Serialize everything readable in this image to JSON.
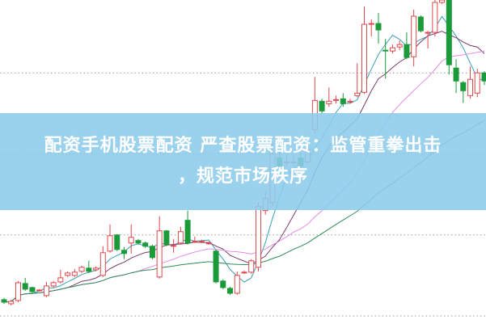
{
  "banner": {
    "line1": "配资手机股票配资 严查股票配资：监管重拳出击",
    "line2": "，规范市场秩序",
    "background": "#8cccec",
    "text_color": "#ffffff"
  },
  "chart_data": {
    "type": "candlestick",
    "title": "",
    "xlabel": "",
    "ylabel": "",
    "ylim": [
      0,
      400
    ],
    "grid": true,
    "grid_levels": [
      10,
      110,
      210,
      310
    ],
    "up_color": "#e0474c",
    "down_color": "#1b9a3a",
    "moving_averages": [
      {
        "period": 5,
        "color": "#3aa0b8"
      },
      {
        "period": 10,
        "color": "#7a3b6e"
      },
      {
        "period": 20,
        "color": "#e58be8"
      },
      {
        "period": 40,
        "color": "#2e8b57"
      }
    ],
    "candles": [
      [
        30,
        27,
        32,
        25
      ],
      [
        25,
        28,
        30,
        23
      ],
      [
        29,
        51,
        53,
        27
      ],
      [
        50,
        43,
        57,
        41
      ],
      [
        45,
        40,
        46,
        38
      ],
      [
        42,
        42,
        43,
        41
      ],
      [
        35,
        47,
        52,
        33
      ],
      [
        47,
        51,
        53,
        45
      ],
      [
        52,
        57,
        67,
        50
      ],
      [
        60,
        63,
        65,
        58
      ],
      [
        60,
        64,
        68,
        58
      ],
      [
        65,
        70,
        72,
        63
      ],
      [
        69,
        65,
        78,
        63
      ],
      [
        67,
        69,
        71,
        65
      ],
      [
        60,
        88,
        96,
        58
      ],
      [
        90,
        109,
        123,
        88
      ],
      [
        110,
        92,
        111,
        90
      ],
      [
        91,
        87,
        95,
        80
      ],
      [
        100,
        107,
        123,
        87
      ],
      [
        103,
        100,
        105,
        98
      ],
      [
        100,
        96,
        102,
        94
      ],
      [
        96,
        82,
        98,
        80
      ],
      [
        58,
        115,
        133,
        56
      ],
      [
        115,
        98,
        116,
        96
      ],
      [
        97,
        97,
        105,
        88
      ],
      [
        100,
        114,
        120,
        98
      ],
      [
        128,
        100,
        140,
        98
      ],
      [
        102,
        102,
        108,
        100
      ],
      [
        102,
        102,
        104,
        100
      ],
      [
        100,
        100,
        102,
        98
      ],
      [
        90,
        52,
        92,
        50
      ],
      [
        53,
        45,
        55,
        43
      ],
      [
        44,
        38,
        46,
        36
      ],
      [
        38,
        60,
        65,
        36
      ],
      [
        64,
        64,
        66,
        62
      ],
      [
        64,
        78,
        80,
        62
      ],
      [
        70,
        145,
        150,
        65
      ],
      [
        140,
        155,
        165,
        135
      ],
      [
        150,
        210,
        225,
        145
      ],
      [
        205,
        195,
        215,
        190
      ],
      [
        200,
        200,
        210,
        195
      ],
      [
        200,
        200,
        208,
        195
      ],
      [
        205,
        195,
        212,
        190
      ],
      [
        200,
        215,
        225,
        198
      ],
      [
        240,
        276,
        305,
        235
      ],
      [
        275,
        263,
        278,
        260
      ],
      [
        272,
        275,
        292,
        268
      ],
      [
        276,
        277,
        282,
        272
      ],
      [
        278,
        272,
        285,
        268
      ],
      [
        274,
        275,
        278,
        272
      ],
      [
        282,
        285,
        322,
        280
      ],
      [
        286,
        370,
        392,
        284
      ],
      [
        370,
        371,
        376,
        355
      ],
      [
        371,
        363,
        384,
        346
      ],
      [
        338,
        337,
        352,
        303
      ],
      [
        337,
        341,
        345,
        334
      ],
      [
        342,
        345,
        350,
        338
      ],
      [
        345,
        329,
        360,
        327
      ],
      [
        330,
        380,
        388,
        318
      ],
      [
        379,
        362,
        381,
        360
      ],
      [
        360,
        360,
        362,
        340
      ],
      [
        360,
        397,
        400,
        355
      ],
      [
        397,
        400,
        402,
        395
      ],
      [
        400,
        320,
        402,
        308
      ],
      [
        316,
        300,
        327,
        285
      ],
      [
        298,
        288,
        300,
        273
      ],
      [
        282,
        302,
        318,
        278
      ],
      [
        285,
        310,
        315,
        280
      ],
      [
        310,
        300,
        312,
        295
      ]
    ]
  }
}
